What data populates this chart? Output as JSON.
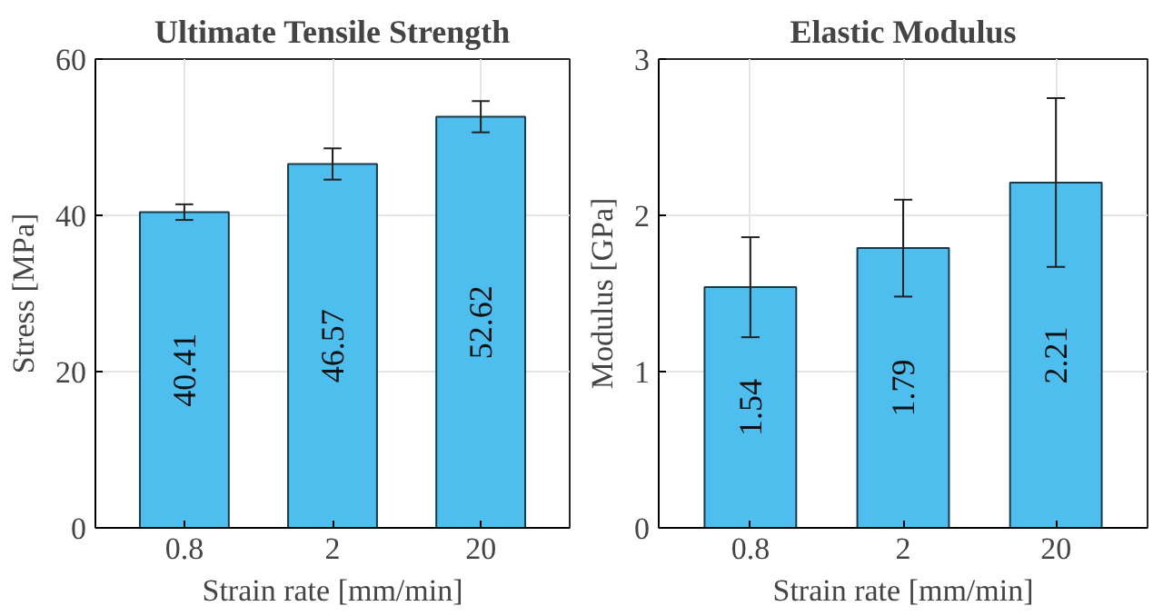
{
  "chart_data": [
    {
      "type": "bar",
      "title": "Ultimate Tensile Strength",
      "xlabel": "Strain rate [mm/min]",
      "ylabel": "Stress [MPa]",
      "categories": [
        "0.8",
        "2",
        "20"
      ],
      "series": [
        {
          "color": "#4dbeee",
          "values": [
            40.41,
            46.57,
            52.62
          ],
          "errors": [
            1,
            2,
            2
          ]
        }
      ],
      "ylim": [
        0,
        60
      ],
      "yticks": [
        0,
        20,
        40,
        60
      ],
      "grid": true,
      "data_labels": true
    },
    {
      "type": "bar",
      "title": "Elastic Modulus",
      "xlabel": "Strain rate [mm/min]",
      "ylabel": "Modulus [GPa]",
      "categories": [
        "0.8",
        "2",
        "20"
      ],
      "series": [
        {
          "color": "#4dbeee",
          "values": [
            1.54,
            1.79,
            2.21
          ],
          "errors": [
            0.32,
            0.31,
            0.54
          ]
        }
      ],
      "ylim": [
        0,
        3
      ],
      "yticks": [
        0,
        1,
        2,
        3
      ],
      "grid": true,
      "data_labels": true
    }
  ]
}
